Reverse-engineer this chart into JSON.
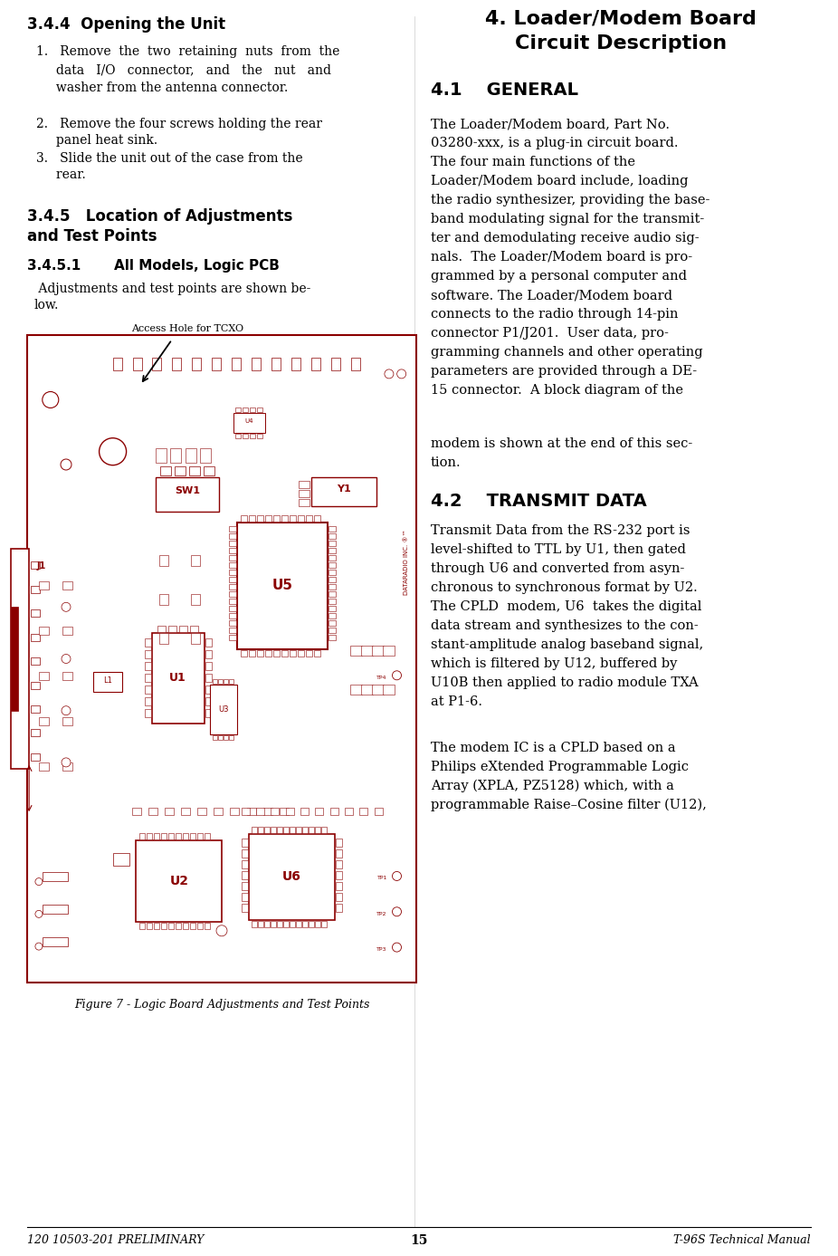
{
  "bg_color": "#ffffff",
  "text_color": "#000000",
  "pcb_color": "#8B0000",
  "page_footer_left": "120 10503-201 PRELIMINARY",
  "page_footer_center": "15",
  "page_footer_right": "T-96S Technical Manual",
  "fig_caption": "Figure 7 - Logic Board Adjustments and Test Points"
}
